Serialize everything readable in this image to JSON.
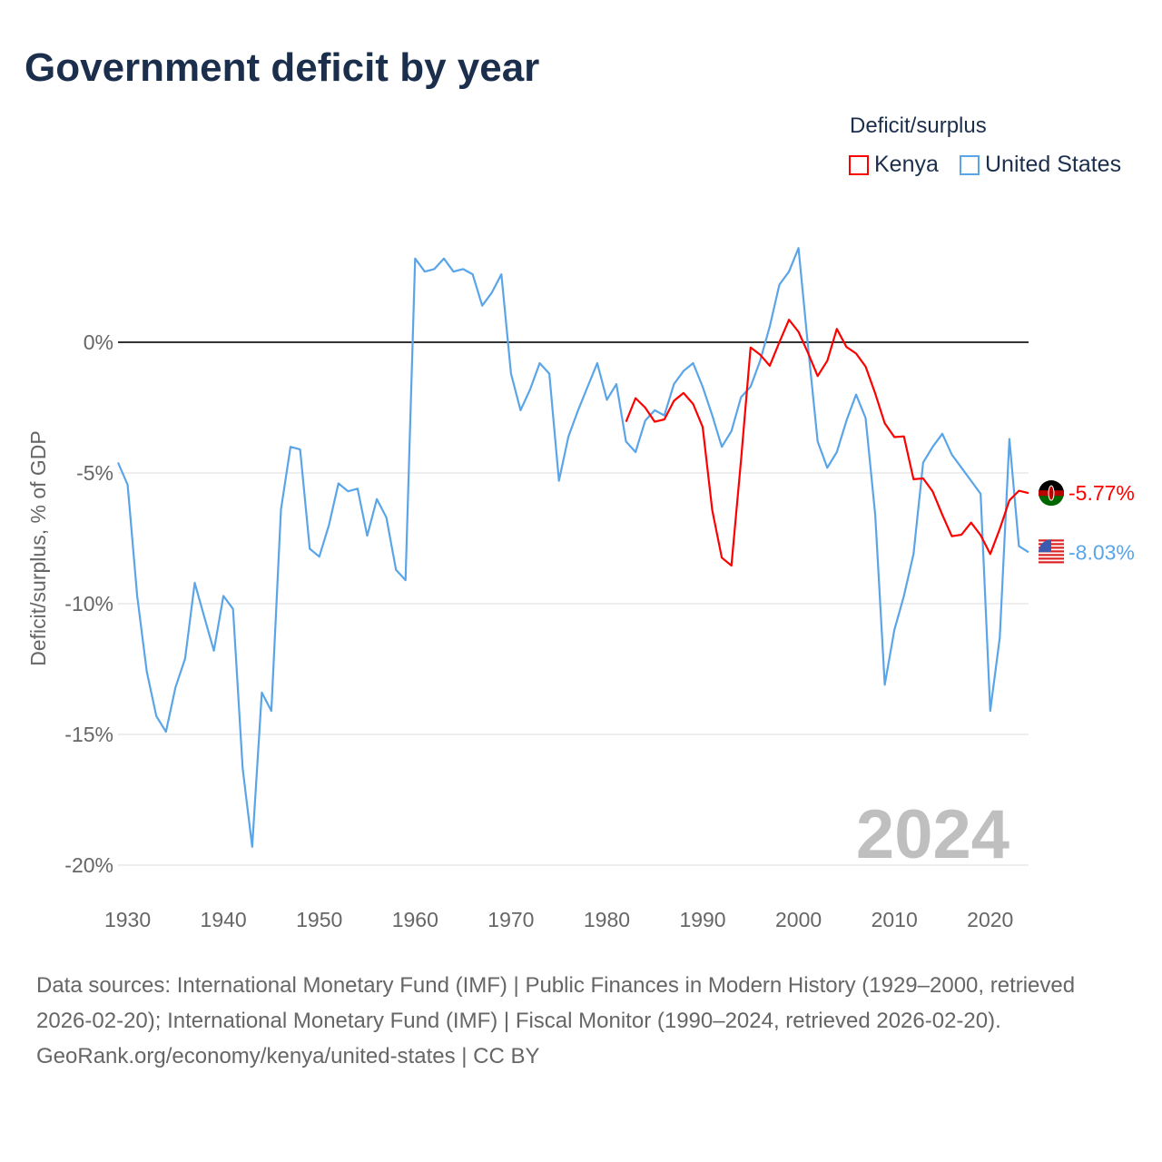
{
  "title": "Government deficit by year",
  "legend": {
    "title": "Deficit/surplus",
    "items": [
      {
        "name": "Kenya",
        "color": "#ff0000"
      },
      {
        "name": "United States",
        "color": "#5aa5e8"
      }
    ]
  },
  "footer": {
    "sources": "Data sources: International Monetary Fund (IMF) | Public Finances in Modern History (1929–2000, retrieved 2026-02-20); International Monetary Fund (IMF) | Fiscal Monitor (1990–2024, retrieved 2026-02-20).",
    "credit": "GeoRank.org/economy/kenya/united-states | CC BY"
  },
  "chart_data": {
    "type": "line",
    "title": "Government deficit by year",
    "ylabel": "Deficit/surplus, % of GDP",
    "xlabel": "",
    "xlim": [
      1929,
      2024
    ],
    "ylim": [
      -20,
      4
    ],
    "current_year_label": "2024",
    "x_ticks": [
      "1930",
      "1940",
      "1950",
      "1960",
      "1970",
      "1980",
      "1990",
      "2000",
      "2010",
      "2020"
    ],
    "y_ticks": [
      {
        "value": 0,
        "label": "0%"
      },
      {
        "value": -5,
        "label": "-5%"
      },
      {
        "value": -10,
        "label": "-10%"
      },
      {
        "value": -15,
        "label": "-15%"
      },
      {
        "value": -20,
        "label": "-20%"
      }
    ],
    "series": [
      {
        "name": "Kenya",
        "color": "#ff0000",
        "start_year": 1982,
        "end_label": "-5.77%",
        "values": [
          -3.04,
          -2.14,
          -2.5,
          -3.04,
          -2.95,
          -2.24,
          -1.94,
          -2.36,
          -3.24,
          -6.43,
          -8.24,
          -8.54,
          -4.5,
          -0.2,
          -0.48,
          -0.9,
          0.0,
          0.86,
          0.4,
          -0.42,
          -1.29,
          -0.71,
          0.51,
          -0.18,
          -0.43,
          -0.93,
          -1.96,
          -3.1,
          -3.63,
          -3.6,
          -5.24,
          -5.21,
          -5.71,
          -6.6,
          -7.42,
          -7.36,
          -6.9,
          -7.38,
          -8.1,
          -7.14,
          -6.05,
          -5.68,
          -5.77
        ]
      },
      {
        "name": "United States",
        "color": "#5aa5e8",
        "start_year": 1929,
        "end_label": "-8.03%",
        "values": [
          -4.6,
          -5.45,
          -9.7,
          -12.6,
          -14.3,
          -14.9,
          -13.2,
          -12.1,
          -9.2,
          -10.5,
          -11.8,
          -9.7,
          -10.2,
          -16.3,
          -19.3,
          -13.4,
          -14.1,
          -6.4,
          -4.0,
          -4.1,
          -7.9,
          -8.2,
          -7.0,
          -5.4,
          -5.7,
          -5.6,
          -7.4,
          -6.0,
          -6.7,
          -8.7,
          -9.1,
          3.2,
          2.7,
          2.8,
          3.2,
          2.7,
          2.8,
          2.6,
          1.4,
          1.9,
          2.6,
          -1.2,
          -2.6,
          -1.8,
          -0.8,
          -1.2,
          -5.3,
          -3.6,
          -2.6,
          -1.7,
          -0.8,
          -2.2,
          -1.6,
          -3.8,
          -4.2,
          -3.0,
          -2.6,
          -2.8,
          -1.6,
          -1.1,
          -0.8,
          -1.7,
          -2.8,
          -4.0,
          -3.4,
          -2.1,
          -1.7,
          -0.7,
          0.6,
          2.2,
          2.7,
          3.6,
          -0.2,
          -3.8,
          -4.8,
          -4.2,
          -3.0,
          -2.0,
          -2.9,
          -6.6,
          -13.1,
          -11.0,
          -9.7,
          -8.1,
          -4.6,
          -4.0,
          -3.5,
          -4.3,
          -4.8,
          -5.3,
          -5.8,
          -14.1,
          -11.3,
          -3.7,
          -7.8,
          -8.03
        ]
      }
    ]
  }
}
